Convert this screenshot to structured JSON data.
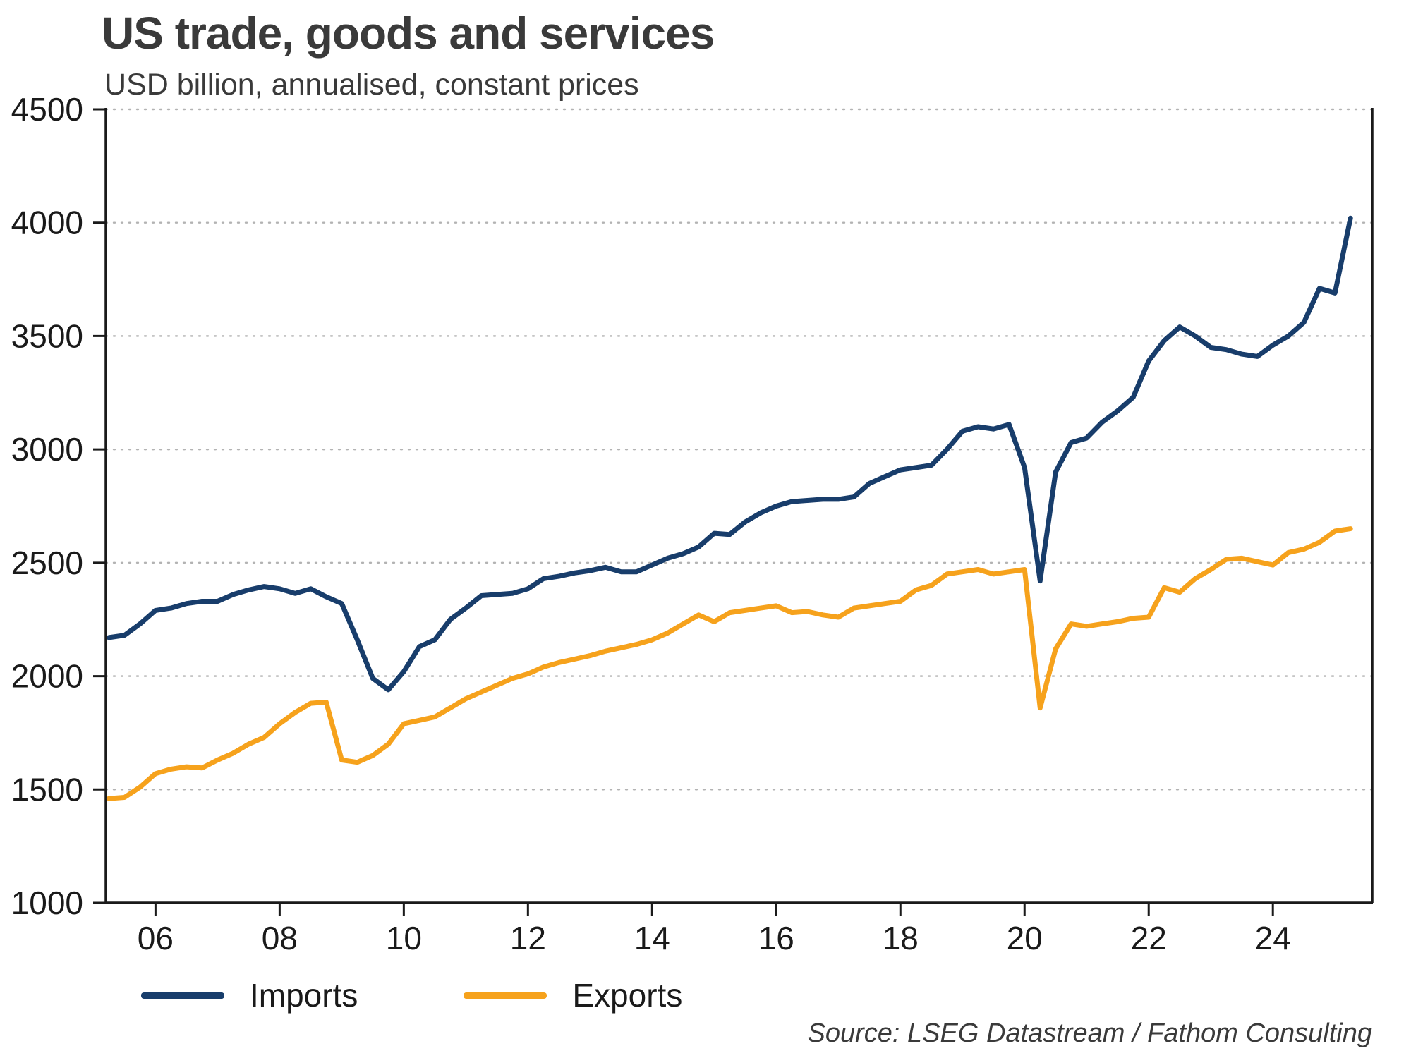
{
  "chart_data": {
    "type": "line",
    "title": "US trade, goods and services",
    "subtitle": "USD billion, annualised, constant prices",
    "source": "Source: LSEG Datastream / Fathom Consulting",
    "xlabel": "",
    "ylabel": "",
    "grid": true,
    "legend_position": "bottom-left",
    "xlim": [
      2005.2,
      2025.6
    ],
    "ylim": [
      1000,
      4500
    ],
    "x_start": 2005.25,
    "x_step": 0.25,
    "y_ticks": [
      1000,
      1500,
      2000,
      2500,
      3000,
      3500,
      4000,
      4500
    ],
    "x_ticks": [
      {
        "label": "06",
        "value": 2006
      },
      {
        "label": "08",
        "value": 2008
      },
      {
        "label": "10",
        "value": 2010
      },
      {
        "label": "12",
        "value": 2012
      },
      {
        "label": "14",
        "value": 2014
      },
      {
        "label": "16",
        "value": 2016
      },
      {
        "label": "18",
        "value": 2018
      },
      {
        "label": "20",
        "value": 2020
      },
      {
        "label": "22",
        "value": 2022
      },
      {
        "label": "24",
        "value": 2024
      }
    ],
    "colors": {
      "grid": "#b3b3b3",
      "axis": "#1a1a1a",
      "text": "#1a1a1a"
    },
    "series": [
      {
        "name": "Imports",
        "color": "#183D6B",
        "values": [
          2170,
          2180,
          2230,
          2290,
          2300,
          2320,
          2330,
          2330,
          2360,
          2380,
          2395,
          2385,
          2365,
          2385,
          2350,
          2320,
          2160,
          1990,
          1940,
          2020,
          2130,
          2160,
          2250,
          2300,
          2355,
          2360,
          2365,
          2385,
          2430,
          2440,
          2455,
          2465,
          2480,
          2460,
          2460,
          2490,
          2520,
          2540,
          2570,
          2630,
          2625,
          2680,
          2720,
          2750,
          2770,
          2775,
          2780,
          2780,
          2790,
          2850,
          2880,
          2910,
          2920,
          2930,
          3000,
          3080,
          3100,
          3090,
          3110,
          2920,
          2420,
          2900,
          3030,
          3050,
          3120,
          3170,
          3230,
          3390,
          3480,
          3540,
          3500,
          3450,
          3440,
          3420,
          3410,
          3460,
          3500,
          3560,
          3710,
          3690,
          4020
        ]
      },
      {
        "name": "Exports",
        "color": "#F6A21C",
        "values": [
          1460,
          1465,
          1510,
          1570,
          1590,
          1600,
          1595,
          1630,
          1660,
          1700,
          1730,
          1790,
          1840,
          1880,
          1885,
          1630,
          1620,
          1650,
          1700,
          1790,
          1805,
          1820,
          1860,
          1900,
          1930,
          1960,
          1990,
          2010,
          2040,
          2060,
          2075,
          2090,
          2110,
          2125,
          2140,
          2160,
          2190,
          2230,
          2270,
          2240,
          2280,
          2290,
          2300,
          2310,
          2280,
          2285,
          2270,
          2260,
          2300,
          2310,
          2320,
          2330,
          2380,
          2400,
          2450,
          2460,
          2470,
          2450,
          2460,
          2470,
          1860,
          2120,
          2230,
          2220,
          2230,
          2240,
          2255,
          2260,
          2390,
          2370,
          2430,
          2470,
          2515,
          2520,
          2505,
          2490,
          2545,
          2560,
          2590,
          2640,
          2650
        ]
      }
    ]
  }
}
